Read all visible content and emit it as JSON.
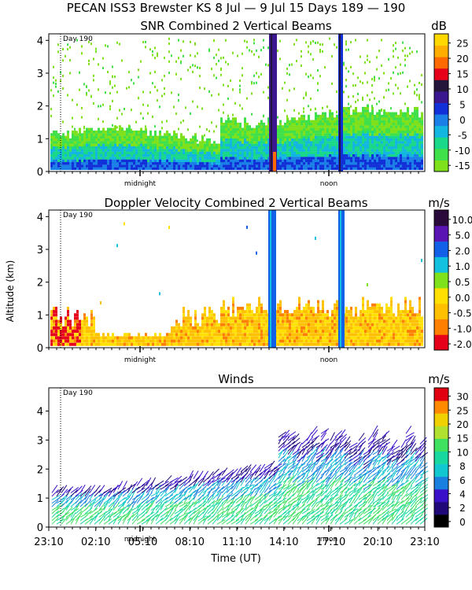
{
  "page_title": "PECAN ISS3 Brewster KS   8 Jul —  9 Jul 15 Days 189 — 190",
  "y_axis_label": "Altitude (km)",
  "x_axis_label": "Time (UT)",
  "colors": {
    "snr_scale": [
      "#7fe01c",
      "#3fe04a",
      "#1ad88a",
      "#12b6e0",
      "#1a7fe6",
      "#1230d8",
      "#3a168f",
      "#24163a",
      "#e6001a",
      "#ff6a00",
      "#ffae00",
      "#ffd800"
    ],
    "vel_scale": [
      "#e6001a",
      "#ff7f00",
      "#ffc000",
      "#ffe000",
      "#7fe01c",
      "#12c0e0",
      "#1260e8",
      "#5a14b4",
      "#2a0a3a"
    ],
    "wind_scale": [
      "#000000",
      "#200878",
      "#3a10c8",
      "#1a80e0",
      "#12c8d0",
      "#18d8a0",
      "#40e060",
      "#b0e030",
      "#f0d000",
      "#ff8a00",
      "#e00010"
    ]
  },
  "chart_data": [
    {
      "type": "heatmap",
      "title": "SNR Combined 2 Vertical Beams",
      "units": "dB",
      "annotation": "Day 190",
      "ylim": [
        0,
        4.2
      ],
      "yticks": [
        0,
        1,
        2,
        3,
        4
      ],
      "colorbar_ticks": [
        "25",
        "20",
        "15",
        "10",
        "5",
        "0",
        "-5",
        "-10",
        "-15"
      ],
      "colorbar_range": [
        -17,
        30
      ],
      "time_markers": [
        "midnight",
        "noon"
      ],
      "grid": false
    },
    {
      "type": "heatmap",
      "title": "Doppler Velocity Combined 2 Vertical Beams",
      "units": "m/s",
      "annotation": "Day 190",
      "ylim": [
        0,
        4.2
      ],
      "yticks": [
        0,
        1,
        2,
        3,
        4
      ],
      "colorbar_ticks": [
        "10.0",
        "5.0",
        "2.0",
        "1.0",
        "0.5",
        "0.0",
        "-0.5",
        "-1.0",
        "-2.0"
      ],
      "time_markers": [
        "midnight",
        "noon"
      ],
      "grid": false
    },
    {
      "type": "scatter",
      "title": "Winds",
      "units": "m/s",
      "annotation": "Day 190",
      "ylim": [
        0,
        4.8
      ],
      "yticks": [
        0,
        1,
        2,
        3,
        4
      ],
      "colorbar_ticks": [
        "30",
        "25",
        "20",
        "15",
        "10",
        "8",
        "6",
        "4",
        "2",
        "0"
      ],
      "time_markers": [
        "midnight",
        "noon"
      ],
      "x_ticks": [
        "23:10",
        "02:10",
        "05:10",
        "08:10",
        "11:10",
        "14:10",
        "17:10",
        "20:10",
        "23:10"
      ],
      "grid": false
    }
  ]
}
